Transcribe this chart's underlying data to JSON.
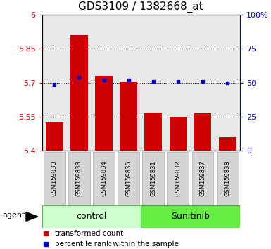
{
  "title": "GDS3109 / 1382668_at",
  "samples": [
    "GSM159830",
    "GSM159833",
    "GSM159834",
    "GSM159835",
    "GSM159831",
    "GSM159832",
    "GSM159837",
    "GSM159838"
  ],
  "bar_values": [
    5.525,
    5.91,
    5.73,
    5.705,
    5.57,
    5.55,
    5.565,
    5.46
  ],
  "percentile_values": [
    49,
    54,
    52,
    52,
    51,
    51,
    51,
    50
  ],
  "bar_color": "#cc0000",
  "dot_color": "#0000cc",
  "ylim_left": [
    5.4,
    6.0
  ],
  "ylim_right": [
    0,
    100
  ],
  "yticks_left": [
    5.4,
    5.55,
    5.7,
    5.85,
    6.0
  ],
  "ytick_labels_left": [
    "5.4",
    "5.55",
    "5.7",
    "5.85",
    "6"
  ],
  "yticks_right": [
    0,
    25,
    50,
    75,
    100
  ],
  "ytick_labels_right": [
    "0",
    "25",
    "50",
    "75",
    "100%"
  ],
  "grid_values": [
    5.55,
    5.7,
    5.85
  ],
  "groups": [
    {
      "label": "control",
      "indices": [
        0,
        1,
        2,
        3
      ],
      "color": "#ccffcc",
      "border": "#55bb55"
    },
    {
      "label": "Sunitinib",
      "indices": [
        4,
        5,
        6,
        7
      ],
      "color": "#66ee44",
      "border": "#33aa33"
    }
  ],
  "agent_label": "agent",
  "legend_bar_label": "transformed count",
  "legend_dot_label": "percentile rank within the sample",
  "bar_base": 5.4,
  "bar_width": 0.7,
  "plot_bg": "#e8e8e8",
  "title_fontsize": 11,
  "tick_fontsize": 8,
  "sample_fontsize": 6,
  "group_fontsize": 9,
  "legend_fontsize": 7.5
}
